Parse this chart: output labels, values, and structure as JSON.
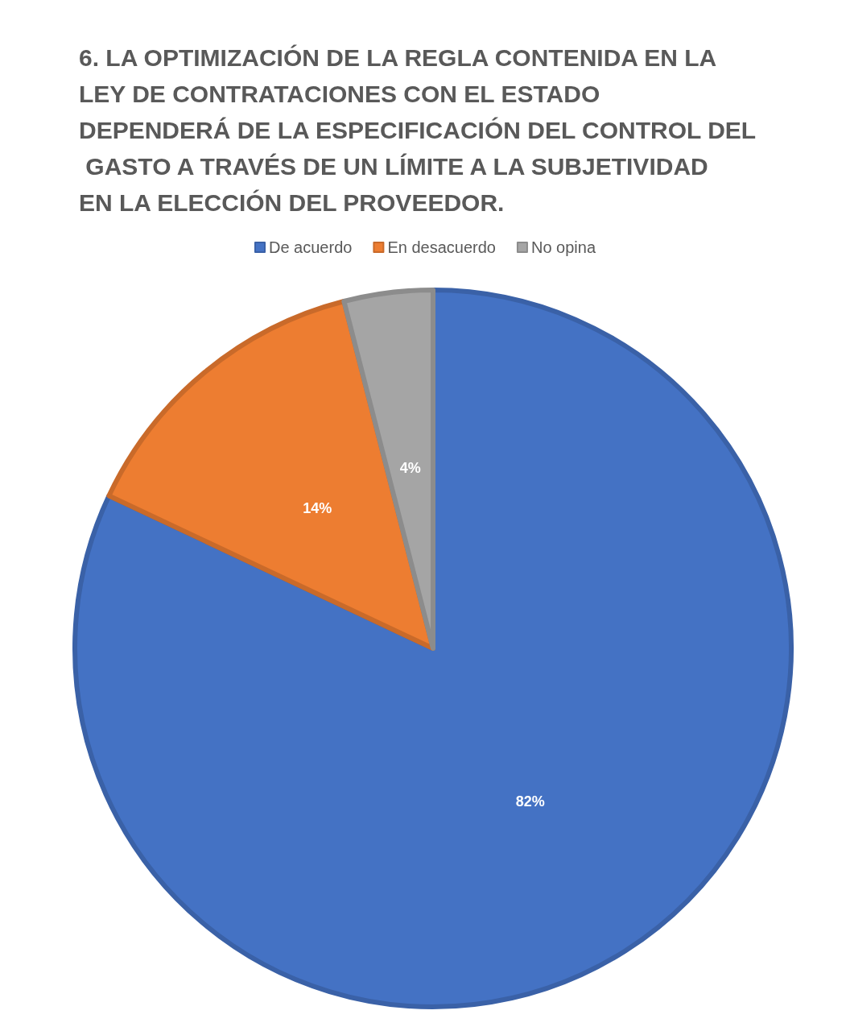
{
  "chart_data": {
    "type": "pie",
    "title": "6. LA OPTIMIZACIÓN DE LA REGLA CONTENIDA EN LA LEY DE CONTRATACIONES CON EL ESTADO DEPENDERÁ DE LA ESPECIFICACIÓN DEL CONTROL DEL GASTO A TRAVÉS DE UN LÍMITE A LA SUBJETIVIDAD EN LA ELECCIÓN DEL PROVEEDOR.",
    "categories": [
      "De acuerdo",
      "En desacuerdo",
      "No opina"
    ],
    "values": [
      82,
      14,
      4
    ],
    "colors": [
      "#4472c4",
      "#ed7d31",
      "#a5a5a5"
    ],
    "value_labels": [
      "82%",
      "14%",
      "4%"
    ],
    "legend": "top"
  }
}
